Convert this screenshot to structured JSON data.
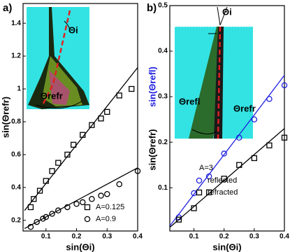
{
  "chart_data": [
    {
      "type": "scatter",
      "panel_label": "a)",
      "xlabel": "sin(Θi)",
      "ylabel": "sin(Θrefr)",
      "xlim": [
        0.025,
        0.4
      ],
      "ylim": [
        0.135,
        1.52
      ],
      "xticks": [
        0.1,
        0.2,
        0.3,
        0.4
      ],
      "yticks": [
        0.2,
        0.4,
        0.6,
        0.8,
        1.0,
        1.2,
        1.4
      ],
      "legend": "lower right",
      "annotations": [
        "Θi",
        "Θrefr"
      ],
      "series": [
        {
          "name": "A=0.125",
          "marker": "square",
          "color": "#000000",
          "x": [
            0.05,
            0.06,
            0.08,
            0.1,
            0.12,
            0.14,
            0.17,
            0.19,
            0.22,
            0.25,
            0.28,
            0.3,
            0.34,
            0.38
          ],
          "values": [
            0.28,
            0.33,
            0.38,
            0.44,
            0.5,
            0.55,
            0.6,
            0.66,
            0.72,
            0.78,
            0.82,
            0.86,
            0.96,
            1.0
          ],
          "fit": {
            "x": [
              0.03,
              0.4
            ],
            "values": [
              0.26,
              1.13
            ]
          }
        },
        {
          "name": "A=0.9",
          "marker": "circle",
          "color": "#000000",
          "x": [
            0.05,
            0.07,
            0.09,
            0.1,
            0.12,
            0.14,
            0.17,
            0.2,
            0.22,
            0.25,
            0.28,
            0.3,
            0.34,
            0.4
          ],
          "values": [
            0.16,
            0.19,
            0.21,
            0.22,
            0.24,
            0.26,
            0.28,
            0.3,
            0.31,
            0.33,
            0.35,
            0.36,
            0.42,
            0.5
          ],
          "fit": {
            "x": [
              0.03,
              0.4
            ],
            "values": [
              0.15,
              0.52
            ]
          }
        }
      ]
    },
    {
      "type": "scatter",
      "panel_label": "b)",
      "xlabel": "sin(Θi)",
      "ylabel": [
        "sin(Θrefl)",
        "sin(Θrefr)"
      ],
      "xlim": [
        0.02,
        0.4
      ],
      "ylim": [
        0.005,
        0.5
      ],
      "xticks": [
        0.1,
        0.2,
        0.3,
        0.4
      ],
      "yticks": [
        0.1,
        0.2,
        0.3,
        0.4,
        0.5
      ],
      "legend": "lower right",
      "legend_title": "A=3",
      "annotations": [
        "Θi",
        "Θrefl",
        "Θrefr"
      ],
      "series": [
        {
          "name": "reflected",
          "marker": "circle",
          "color": "#1f1fe0",
          "x": [
            0.05,
            0.1,
            0.15,
            0.2,
            0.25,
            0.3,
            0.35,
            0.4
          ],
          "values": [
            0.035,
            0.088,
            0.125,
            0.175,
            0.21,
            0.25,
            0.295,
            0.325
          ],
          "fit": {
            "x": [
              0.02,
              0.4
            ],
            "values": [
              0.016,
              0.347
            ]
          }
        },
        {
          "name": "refracted",
          "marker": "square",
          "color": "#000000",
          "x": [
            0.05,
            0.1,
            0.15,
            0.2,
            0.25,
            0.3,
            0.35,
            0.4
          ],
          "values": [
            0.03,
            0.055,
            0.09,
            0.12,
            0.15,
            0.165,
            0.193,
            0.21
          ],
          "fit": {
            "x": [
              0.02,
              0.4
            ],
            "values": [
              0.013,
              0.23
            ]
          }
        }
      ]
    }
  ]
}
